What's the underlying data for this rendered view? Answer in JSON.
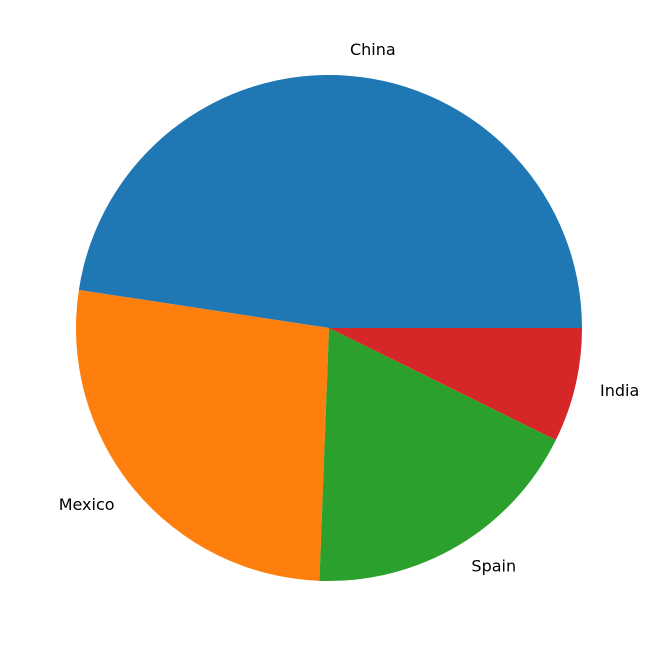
{
  "chart_data": {
    "type": "pie",
    "title": "",
    "start_angle_deg": 0,
    "direction": "counterclockwise",
    "slices": [
      {
        "label": "China",
        "value": 47.6,
        "color": "#1f77b4"
      },
      {
        "label": "Mexico",
        "value": 26.8,
        "color": "#ff7f0e"
      },
      {
        "label": "Spain",
        "value": 18.3,
        "color": "#2ca02c"
      },
      {
        "label": "India",
        "value": 7.3,
        "color": "#d62728"
      }
    ]
  }
}
